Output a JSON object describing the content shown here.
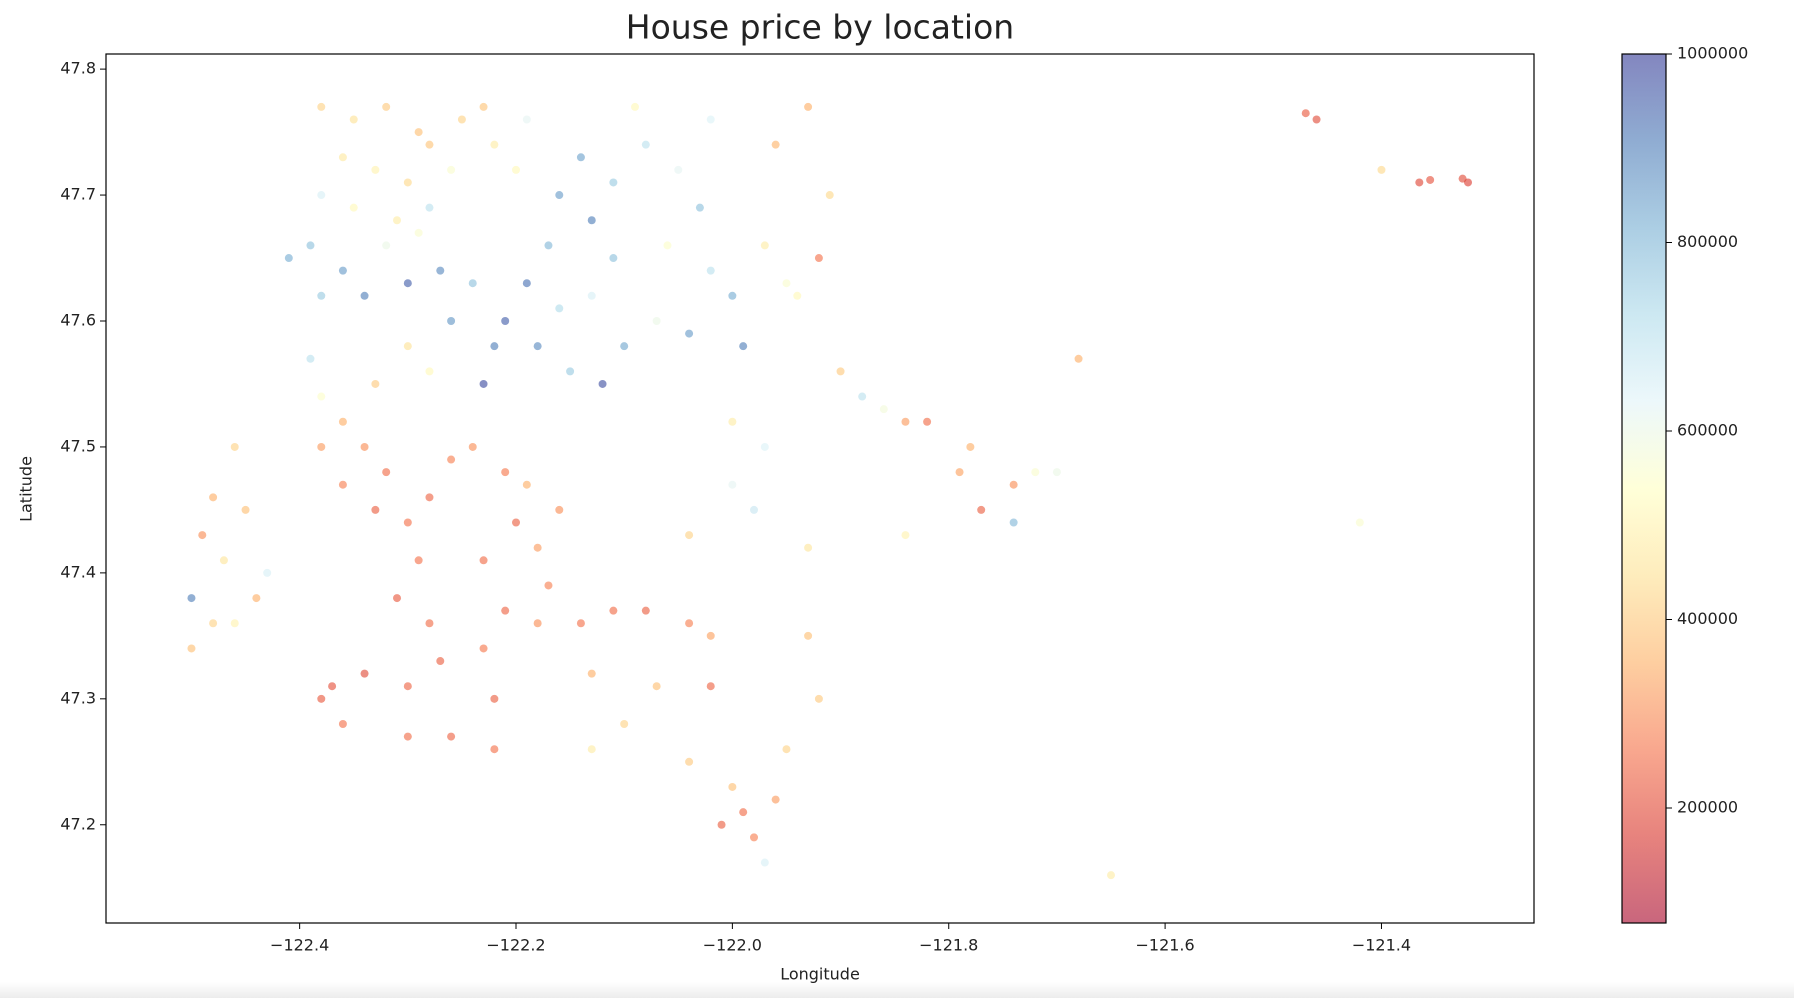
{
  "chart_data": {
    "type": "scatter",
    "title": "House price by location",
    "xlabel": "Longitude",
    "ylabel": "Latitude",
    "xlim": [
      -122.579,
      -121.259
    ],
    "ylim": [
      47.122,
      47.812
    ],
    "xticks": [
      {
        "value": -122.4,
        "label": "−122.4"
      },
      {
        "value": -122.2,
        "label": "−122.2"
      },
      {
        "value": -122.0,
        "label": "−122.0"
      },
      {
        "value": -121.8,
        "label": "−121.8"
      },
      {
        "value": -121.6,
        "label": "−121.6"
      },
      {
        "value": -121.4,
        "label": "−121.4"
      }
    ],
    "yticks": [
      47.2,
      47.3,
      47.4,
      47.5,
      47.6,
      47.7,
      47.8
    ],
    "colormap": [
      "#a50026",
      "#d73027",
      "#f46d43",
      "#fdae61",
      "#fee090",
      "#ffffbf",
      "#e0f3f8",
      "#abd9e9",
      "#74add1",
      "#4575b4",
      "#313695"
    ],
    "alpha": 0.6,
    "clim": [
      78000,
      1000000
    ],
    "colorbar_ticks": [
      200000,
      400000,
      600000,
      800000,
      1000000
    ],
    "x": [
      -122.38,
      -122.35,
      -122.32,
      -122.29,
      -122.36,
      -122.33,
      -122.3,
      -122.38,
      -122.35,
      -122.31,
      -122.28,
      -122.39,
      -122.41,
      -122.36,
      -122.32,
      -122.29,
      -122.34,
      -122.38,
      -122.3,
      -122.28,
      -122.26,
      -122.25,
      -122.22,
      -122.2,
      -122.23,
      -122.19,
      -122.16,
      -122.13,
      -122.17,
      -122.19,
      -122.21,
      -122.18,
      -122.15,
      -122.12,
      -122.1,
      -122.16,
      -122.13,
      -122.11,
      -122.23,
      -122.22,
      -122.14,
      -122.11,
      -122.08,
      -122.05,
      -122.03,
      -122.06,
      -122.02,
      -122.0,
      -122.04,
      -122.07,
      -121.99,
      -122.02,
      -121.97,
      -121.95,
      -122.09,
      -122.3,
      -122.33,
      -122.28,
      -122.39,
      -122.38,
      -122.36,
      -122.34,
      -122.32,
      -122.38,
      -122.36,
      -122.33,
      -122.3,
      -122.28,
      -122.26,
      -122.24,
      -122.21,
      -122.19,
      -122.2,
      -122.23,
      -122.29,
      -122.31,
      -122.28,
      -122.27,
      -122.3,
      -122.34,
      -122.37,
      -122.38,
      -122.36,
      -122.3,
      -122.26,
      -122.22,
      -122.22,
      -122.23,
      -122.21,
      -122.18,
      -122.17,
      -122.18,
      -122.16,
      -122.14,
      -122.11,
      -122.08,
      -122.04,
      -122.02,
      -122.13,
      -122.07,
      -122.02,
      -122.1,
      -122.13,
      -122.04,
      -122.0,
      -121.99,
      -122.01,
      -121.98,
      -121.96,
      -121.93,
      -121.91,
      -121.96,
      -121.92,
      -121.94,
      -121.9,
      -121.88,
      -121.86,
      -121.84,
      -121.82,
      -121.78,
      -121.79,
      -121.77,
      -121.74,
      -121.72,
      -121.7,
      -121.74,
      -122.0,
      -121.97,
      -122.0,
      -121.98,
      -122.04,
      -121.93,
      -121.93,
      -121.92,
      -121.95,
      -121.97,
      -121.84,
      -121.68,
      -121.65,
      -121.42,
      -122.46,
      -122.48,
      -122.45,
      -122.49,
      -122.47,
      -122.44,
      -122.5,
      -122.48,
      -122.46,
      -122.43,
      -122.5,
      -121.47,
      -121.46,
      -121.4,
      -121.365,
      -121.355,
      -121.325,
      -121.32,
      -122.27,
      -122.26,
      -122.24
    ],
    "y": [
      47.77,
      47.76,
      47.77,
      47.75,
      47.73,
      47.72,
      47.71,
      47.7,
      47.69,
      47.68,
      47.69,
      47.66,
      47.65,
      47.64,
      47.66,
      47.67,
      47.62,
      47.62,
      47.63,
      47.74,
      47.72,
      47.76,
      47.74,
      47.72,
      47.77,
      47.76,
      47.7,
      47.68,
      47.66,
      47.63,
      47.6,
      47.58,
      47.56,
      47.55,
      47.58,
      47.61,
      47.62,
      47.65,
      47.55,
      47.58,
      47.73,
      47.71,
      47.74,
      47.72,
      47.69,
      47.66,
      47.64,
      47.62,
      47.59,
      47.6,
      47.58,
      47.76,
      47.66,
      47.63,
      47.77,
      47.58,
      47.55,
      47.56,
      47.57,
      47.54,
      47.52,
      47.5,
      47.48,
      47.5,
      47.47,
      47.45,
      47.44,
      47.46,
      47.49,
      47.5,
      47.48,
      47.47,
      47.44,
      47.41,
      47.41,
      47.38,
      47.36,
      47.33,
      47.31,
      47.32,
      47.31,
      47.3,
      47.28,
      47.27,
      47.27,
      47.26,
      47.3,
      47.34,
      47.37,
      47.36,
      47.39,
      47.42,
      47.45,
      47.36,
      47.37,
      47.37,
      47.36,
      47.35,
      47.32,
      47.31,
      47.31,
      47.28,
      47.26,
      47.25,
      47.23,
      47.21,
      47.2,
      47.19,
      47.22,
      47.77,
      47.7,
      47.74,
      47.65,
      47.62,
      47.56,
      47.54,
      47.53,
      47.52,
      47.52,
      47.5,
      47.48,
      47.45,
      47.47,
      47.48,
      47.48,
      47.44,
      47.52,
      47.5,
      47.47,
      47.45,
      47.43,
      47.42,
      47.35,
      47.3,
      47.26,
      47.17,
      47.43,
      47.57,
      47.16,
      47.44,
      47.5,
      47.46,
      47.45,
      47.43,
      47.41,
      47.38,
      47.38,
      47.36,
      47.36,
      47.4,
      47.34,
      47.765,
      47.76,
      47.72,
      47.71,
      47.712,
      47.713,
      47.71,
      47.64,
      47.6,
      47.63
    ],
    "color_values": [
      420000,
      450000,
      400000,
      380000,
      470000,
      500000,
      430000,
      650000,
      520000,
      480000,
      700000,
      780000,
      820000,
      850000,
      600000,
      560000,
      900000,
      760000,
      950000,
      390000,
      560000,
      420000,
      480000,
      520000,
      390000,
      620000,
      850000,
      900000,
      800000,
      920000,
      950000,
      880000,
      760000,
      970000,
      830000,
      720000,
      650000,
      780000,
      980000,
      900000,
      840000,
      760000,
      700000,
      620000,
      780000,
      550000,
      700000,
      820000,
      850000,
      600000,
      900000,
      640000,
      480000,
      560000,
      520000,
      450000,
      400000,
      520000,
      700000,
      550000,
      350000,
      300000,
      250000,
      320000,
      280000,
      230000,
      260000,
      240000,
      280000,
      300000,
      270000,
      350000,
      230000,
      250000,
      260000,
      220000,
      250000,
      230000,
      240000,
      200000,
      210000,
      220000,
      260000,
      250000,
      240000,
      260000,
      230000,
      270000,
      240000,
      300000,
      280000,
      320000,
      300000,
      260000,
      250000,
      230000,
      280000,
      330000,
      350000,
      380000,
      240000,
      420000,
      480000,
      400000,
      380000,
      250000,
      230000,
      280000,
      320000,
      350000,
      430000,
      360000,
      260000,
      520000,
      400000,
      700000,
      580000,
      320000,
      250000,
      350000,
      330000,
      230000,
      300000,
      560000,
      600000,
      800000,
      480000,
      640000,
      620000,
      680000,
      420000,
      460000,
      380000,
      400000,
      420000,
      650000,
      500000,
      350000,
      480000,
      560000,
      420000,
      350000,
      380000,
      300000,
      460000,
      350000,
      900000,
      420000,
      500000,
      650000,
      380000,
      220000,
      200000,
      430000,
      190000,
      210000,
      200000,
      180000,
      880000,
      860000,
      780000
    ]
  }
}
